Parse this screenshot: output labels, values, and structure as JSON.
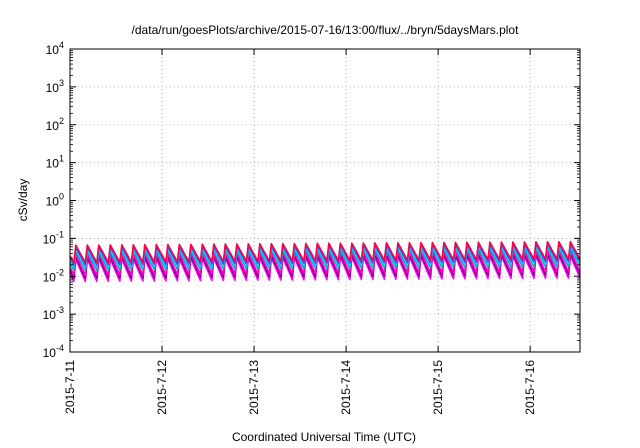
{
  "chart_data": {
    "type": "line",
    "title": "/data/run/goesPlots/archive/2015-07-16/13:00/flux/../bryn/5daysMars.plot",
    "xlabel": "Coordinated Universal Time (UTC)",
    "ylabel": "cSv/day",
    "yscale": "log",
    "ylim": [
      0.0001,
      10000
    ],
    "y_ticks": [
      {
        "base": "10",
        "exp": "-4"
      },
      {
        "base": "10",
        "exp": "-3"
      },
      {
        "base": "10",
        "exp": "-2"
      },
      {
        "base": "10",
        "exp": "-1"
      },
      {
        "base": "10",
        "exp": "0"
      },
      {
        "base": "10",
        "exp": "1"
      },
      {
        "base": "10",
        "exp": "2"
      },
      {
        "base": "10",
        "exp": "3"
      },
      {
        "base": "10",
        "exp": "4"
      }
    ],
    "xlim": [
      "2015-07-11 00:00",
      "2015-07-16 13:00"
    ],
    "x_ticks": [
      "2015-7-11",
      "2015-7-12",
      "2015-7-13",
      "2015-7-14",
      "2015-7-15",
      "2015-7-16"
    ],
    "grid": true,
    "legend": "none",
    "cycle_hours": 3,
    "cycle_start": "2015-07-11 01:30",
    "series": [
      {
        "color": "#ff00ff",
        "peak": 0.028,
        "trough": 0.0055,
        "trend": 1.25
      },
      {
        "color": "#800080",
        "peak": 0.032,
        "trough": 0.0068,
        "trend": 1.25
      },
      {
        "color": "#ff00cc",
        "peak": 0.038,
        "trough": 0.0082,
        "trend": 1.25
      },
      {
        "color": "#00b0b0",
        "peak": 0.045,
        "trough": 0.0115,
        "trend": 1.25
      },
      {
        "color": "#22ccff",
        "peak": 0.052,
        "trough": 0.0135,
        "trend": 1.25
      },
      {
        "color": "#3355ff",
        "peak": 0.058,
        "trough": 0.016,
        "trend": 1.25
      },
      {
        "color": "#ff0044",
        "peak": 0.066,
        "trough": 0.0185,
        "trend": 1.25
      }
    ]
  }
}
